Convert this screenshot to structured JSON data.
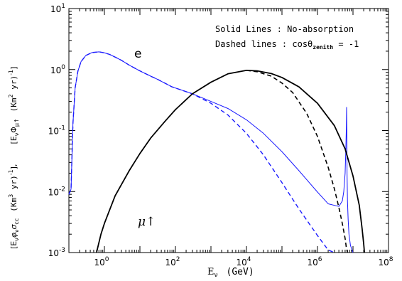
{
  "chart_data": {
    "type": "line",
    "x_scale": "log",
    "y_scale": "log",
    "xlim": [
      0.1,
      100000000
    ],
    "ylim": [
      0.001,
      10
    ],
    "x_ticks": [
      {
        "value": 1,
        "base": "10",
        "exp": "0"
      },
      {
        "value": 100,
        "base": "10",
        "exp": "2"
      },
      {
        "value": 10000,
        "base": "10",
        "exp": "4"
      },
      {
        "value": 1000000,
        "base": "10",
        "exp": "6"
      },
      {
        "value": 100000000,
        "base": "10",
        "exp": "8"
      }
    ],
    "y_ticks": [
      {
        "value": 0.001,
        "base": "10",
        "exp": "-3"
      },
      {
        "value": 0.01,
        "base": "10",
        "exp": "-2"
      },
      {
        "value": 0.1,
        "base": "10",
        "exp": "-1"
      },
      {
        "value": 1,
        "base": "10",
        "exp": "0"
      },
      {
        "value": 10,
        "base": "10",
        "exp": "1"
      }
    ],
    "xlabel": {
      "main": "E",
      "sub": "ν",
      "unit": "(GeV)"
    },
    "ylabel": {
      "lower": "[Eνφνσcc  (Km³ yr)⁻¹],",
      "upper": "[EνΦμ↑  (Km² yr)⁻¹]",
      "lower_parts": {
        "open": "[E",
        "s1": "ν",
        "phi": "φ",
        "s2": "ν",
        "sigma": "σ",
        "s3": "cc",
        "unit": "(Km",
        "exp": "3",
        "unit2": " yr)",
        "exp2": "-1",
        "close": "],"
      },
      "upper_parts": {
        "open": "[E",
        "s1": "ν",
        "phi": "Φ",
        "s2": "μ↑",
        "unit": "(Km",
        "exp": "2",
        "unit2": " yr)",
        "exp2": "-1",
        "close": "]"
      }
    },
    "legend": {
      "line1": "Solid Lines : No-absorption",
      "line2_text": "Dashed lines : cosθ",
      "line2_sub": "zenith",
      "line2_end": " = -1",
      "position": "top-right"
    },
    "annotations": {
      "electron": "e",
      "muon": "μ↑"
    },
    "series": [
      {
        "id": "e_solid",
        "color": "#1a1aff",
        "dash": false,
        "width": 1.0,
        "x": [
          0.1,
          0.112,
          0.115,
          0.13,
          0.15,
          0.18,
          0.22,
          0.3,
          0.45,
          0.7,
          1.0,
          1.4,
          2,
          3,
          5,
          10,
          20,
          30,
          50,
          80,
          150,
          300,
          1000,
          3000,
          10000,
          30000,
          100000,
          300000,
          1000000,
          2000000,
          4000000,
          5000000,
          5500000,
          6000000,
          6300000,
          6500000,
          6600000,
          6700000,
          6800000,
          7000000,
          7300000,
          7700000,
          8500000,
          10000000
        ],
        "y": [
          0.009,
          0.0105,
          0.011,
          0.13,
          0.5,
          0.95,
          1.35,
          1.7,
          1.9,
          1.95,
          1.88,
          1.77,
          1.6,
          1.42,
          1.18,
          0.95,
          0.78,
          0.7,
          0.6,
          0.52,
          0.46,
          0.4,
          0.3,
          0.23,
          0.15,
          0.09,
          0.045,
          0.022,
          0.0098,
          0.0063,
          0.0057,
          0.007,
          0.01,
          0.02,
          0.05,
          0.12,
          0.24,
          0.1,
          0.02,
          0.007,
          0.0035,
          0.002,
          0.0013,
          0.001
        ]
      },
      {
        "id": "e_dashed",
        "color": "#1a1aff",
        "dash": true,
        "width": 1.4,
        "x": [
          0.1,
          0.112,
          0.115,
          0.13,
          0.15,
          0.18,
          0.22,
          0.3,
          0.45,
          0.7,
          1.0,
          1.4,
          2,
          3,
          5,
          10,
          20,
          30,
          50,
          80,
          150,
          300,
          1000,
          3000,
          10000,
          30000,
          100000,
          300000,
          1000000,
          2000000,
          3000000
        ],
        "y": [
          0.009,
          0.0105,
          0.011,
          0.13,
          0.5,
          0.95,
          1.35,
          1.7,
          1.9,
          1.95,
          1.88,
          1.77,
          1.6,
          1.42,
          1.18,
          0.95,
          0.78,
          0.7,
          0.6,
          0.52,
          0.46,
          0.4,
          0.28,
          0.18,
          0.09,
          0.04,
          0.014,
          0.0052,
          0.0019,
          0.0011,
          0.001
        ]
      },
      {
        "id": "mu_solid",
        "color": "#000000",
        "dash": false,
        "width": 1.8,
        "x": [
          0.6,
          0.8,
          1,
          2,
          5,
          10,
          20,
          50,
          100,
          300,
          1000,
          3000,
          10000,
          20000,
          50000,
          100000,
          300000,
          1000000,
          3000000,
          6000000,
          10000000,
          15000000,
          18000000,
          20000000,
          21000000
        ],
        "y": [
          0.001,
          0.002,
          0.003,
          0.0085,
          0.022,
          0.042,
          0.075,
          0.14,
          0.22,
          0.4,
          0.62,
          0.85,
          0.97,
          0.95,
          0.86,
          0.74,
          0.52,
          0.28,
          0.12,
          0.05,
          0.018,
          0.006,
          0.0025,
          0.0014,
          0.001
        ]
      },
      {
        "id": "mu_dashed",
        "color": "#000000",
        "dash": true,
        "width": 1.6,
        "x": [
          10000,
          20000,
          50000,
          100000,
          200000,
          500000,
          1000000,
          2000000,
          3000000,
          4000000,
          5000000,
          6000000,
          6500000,
          7000000
        ],
        "y": [
          0.97,
          0.92,
          0.78,
          0.6,
          0.42,
          0.19,
          0.08,
          0.025,
          0.011,
          0.0055,
          0.003,
          0.0017,
          0.0012,
          0.001
        ]
      }
    ]
  }
}
